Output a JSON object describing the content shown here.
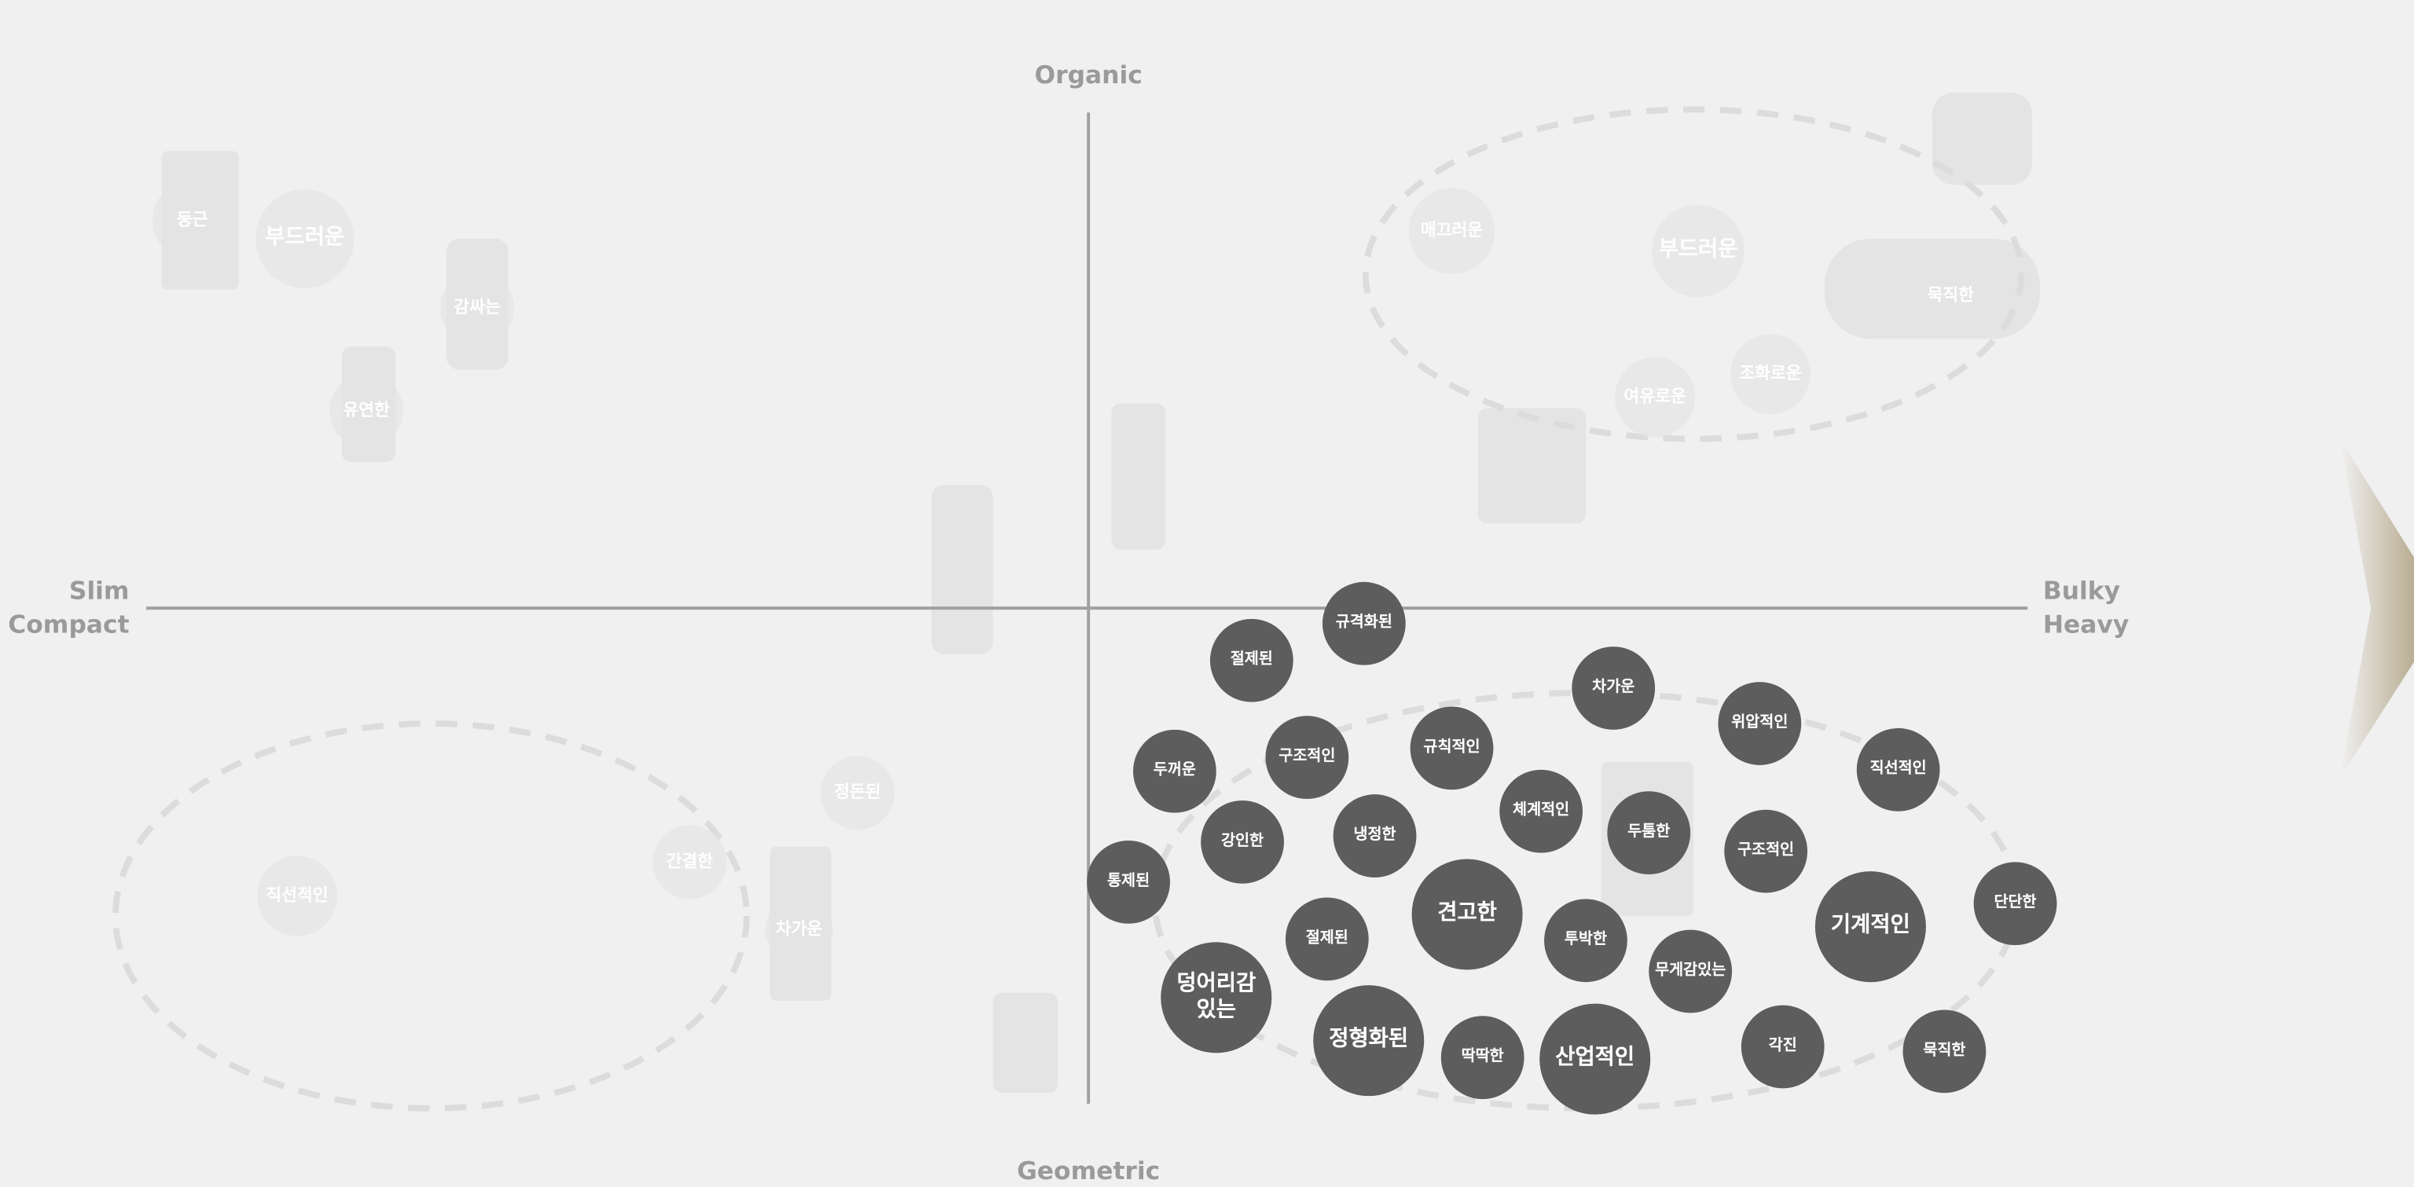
{
  "axes": {
    "top": "Organic",
    "bottom": "Geometric",
    "left": [
      "Slim",
      "Compact"
    ],
    "right": [
      "Bulky",
      "Heavy"
    ]
  },
  "keywords": [
    "절제된",
    "규격화된",
    "차가운",
    "위압적인",
    "직선적인",
    "두꺼운",
    "구조적인",
    "규칙적인",
    "체계적인",
    "두툼한",
    "구조적인",
    "강인한",
    "냉정한",
    "통제된",
    "견고한",
    "기계적인",
    "단단한",
    "절제된",
    "투박한",
    "무게감있는",
    "덩어리감 있는",
    "정형화된",
    "딱딱한",
    "산업적인",
    "각진",
    "묵직한"
  ],
  "faded_keywords": [
    "둥근",
    "부드러운",
    "감싸는",
    "유연한",
    "매끄러운",
    "부드러운",
    "여유로운",
    "조화로운",
    "묵직한",
    "직선적인",
    "간결한",
    "정돈된",
    "차가운"
  ]
}
